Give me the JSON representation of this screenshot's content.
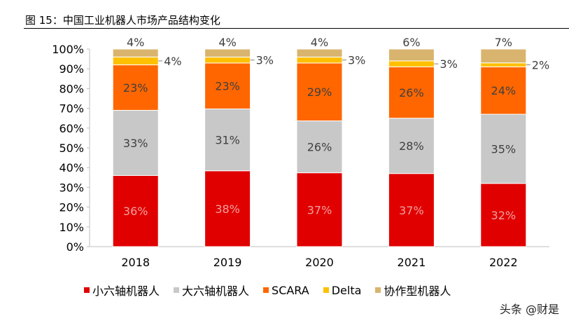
{
  "title": "图 15：中国工业机器人市场产品结构变化",
  "watermark": "头条 @财是",
  "chart_data": {
    "type": "bar",
    "stacked": true,
    "categories": [
      "2018",
      "2019",
      "2020",
      "2021",
      "2022"
    ],
    "series": [
      {
        "name": "小六轴机器人",
        "color": "#E00000",
        "label_color": "#F2A0A0",
        "values": [
          36,
          38,
          37,
          37,
          32
        ]
      },
      {
        "name": "大六轴机器人",
        "color": "#C8C8C8",
        "label_color": "#404040",
        "values": [
          33,
          31,
          26,
          28,
          35
        ]
      },
      {
        "name": "SCARA",
        "color": "#FF6600",
        "label_color": "#404040",
        "values": [
          23,
          23,
          29,
          26,
          24
        ]
      },
      {
        "name": "Delta",
        "color": "#FFC000",
        "label_color": "#404040",
        "values": [
          4,
          3,
          3,
          3,
          2
        ]
      },
      {
        "name": "协作型机器人",
        "color": "#D9B46E",
        "label_color": "#404040",
        "values": [
          4,
          4,
          4,
          6,
          7
        ]
      }
    ],
    "ylim": [
      0,
      100
    ],
    "yticks": [
      "0%",
      "10%",
      "20%",
      "30%",
      "40%",
      "50%",
      "60%",
      "70%",
      "80%",
      "90%",
      "100%"
    ],
    "grid": false,
    "legend_position": "bottom"
  }
}
